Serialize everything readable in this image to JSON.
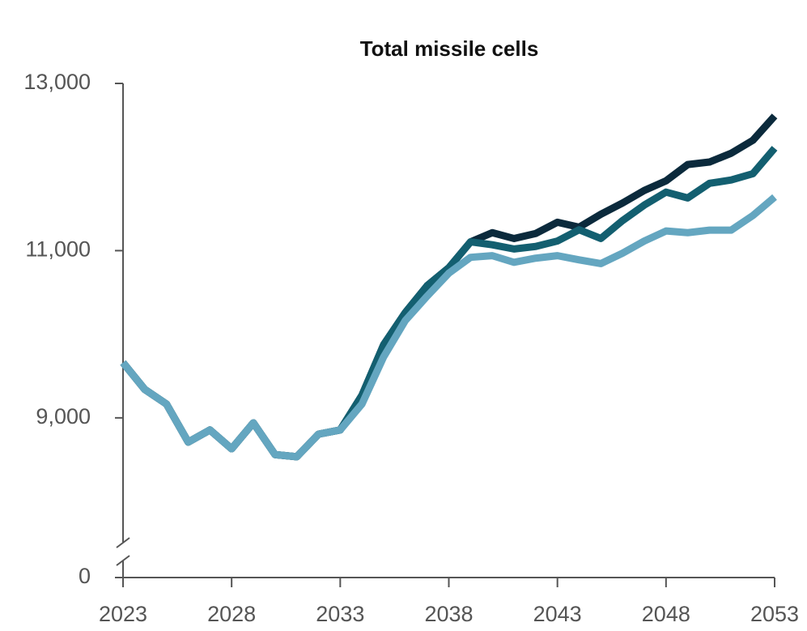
{
  "chart_data": {
    "type": "line",
    "title": "Total missile cells",
    "x": [
      2023,
      2024,
      2025,
      2026,
      2027,
      2028,
      2029,
      2030,
      2031,
      2032,
      2033,
      2034,
      2035,
      2036,
      2037,
      2038,
      2039,
      2040,
      2041,
      2042,
      2043,
      2044,
      2045,
      2046,
      2047,
      2048,
      2049,
      2050,
      2051,
      2052,
      2053
    ],
    "series": [
      {
        "color": "#0b2a3c",
        "values": [
          9660,
          9340,
          9165,
          8710,
          8855,
          8630,
          8940,
          8560,
          8535,
          8805,
          8855,
          9270,
          9875,
          10260,
          10580,
          10795,
          11105,
          11215,
          11145,
          11205,
          11340,
          11280,
          11435,
          11570,
          11720,
          11835,
          12030,
          12060,
          12165,
          12320,
          12610
        ]
      },
      {
        "color": "#135f70",
        "values": [
          9660,
          9340,
          9165,
          8710,
          8855,
          8630,
          8940,
          8560,
          8535,
          8805,
          8855,
          9270,
          9875,
          10260,
          10580,
          10795,
          11105,
          11070,
          11020,
          11050,
          11115,
          11250,
          11145,
          11360,
          11545,
          11700,
          11630,
          11805,
          11845,
          11920,
          12225
        ]
      },
      {
        "color": "#64a6c0",
        "values": [
          9660,
          9340,
          9165,
          8710,
          8855,
          8630,
          8940,
          8560,
          8535,
          8805,
          8855,
          9165,
          9730,
          10165,
          10455,
          10730,
          10920,
          10940,
          10860,
          10910,
          10940,
          10890,
          10845,
          10970,
          11115,
          11235,
          11215,
          11245,
          11245,
          11420,
          11640
        ]
      }
    ],
    "xlim": [
      2023,
      2053
    ],
    "xticks": [
      2023,
      2028,
      2033,
      2038,
      2043,
      2048,
      2053
    ],
    "ylim": [
      7400,
      13000
    ],
    "yticks": [
      0,
      {
        "value": 9000,
        "label": "9,000"
      },
      {
        "value": 11000,
        "label": "11,000"
      },
      {
        "value": 13000,
        "label": "13,000"
      }
    ],
    "y_axis_break": true
  }
}
